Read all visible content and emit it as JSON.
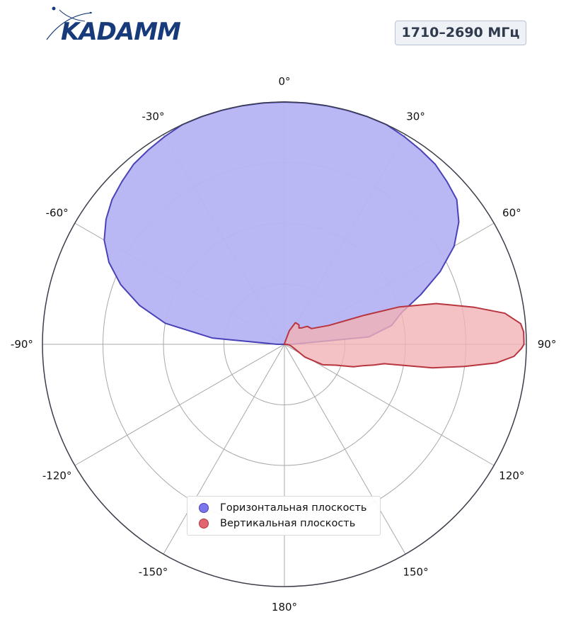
{
  "header": {
    "logo_text": "KADAMM",
    "badge": "1710–2690 МГц"
  },
  "colors": {
    "horizontal_fill": "#b5b4f4",
    "horizontal_line": "#4a42b8",
    "vertical_fill": "#f1b1b5",
    "vertical_line": "#b8353f",
    "grid": "#a8a8a8",
    "outer_ring": "#3b3e4a",
    "logo": "#173a7a"
  },
  "chart_data": {
    "type": "polar",
    "theta_zero": "top",
    "theta_direction": "clockwise",
    "r_range": [
      0,
      1
    ],
    "r_grid": [
      0.25,
      0.5,
      0.75,
      1.0
    ],
    "grid": true,
    "legend_position": "bottom-center",
    "angle_labels": [
      {
        "angle": 0,
        "label": "0°"
      },
      {
        "angle": 30,
        "label": "30°"
      },
      {
        "angle": 60,
        "label": "60°"
      },
      {
        "angle": 90,
        "label": "90°"
      },
      {
        "angle": 120,
        "label": "120°"
      },
      {
        "angle": 150,
        "label": "150°"
      },
      {
        "angle": 180,
        "label": "180°"
      },
      {
        "angle": -150,
        "label": "-150°"
      },
      {
        "angle": -120,
        "label": "-120°"
      },
      {
        "angle": -90,
        "label": "-90°"
      },
      {
        "angle": -60,
        "label": "-60°"
      },
      {
        "angle": -30,
        "label": "-30°"
      }
    ],
    "series": [
      {
        "name": "Горизонтальная плоскость",
        "theta": [
          -90,
          -85,
          -80,
          -75,
          -70,
          -65,
          -60,
          -55,
          -50,
          -45,
          -40,
          -35,
          -30,
          -25,
          -20,
          -15,
          -10,
          -5,
          0,
          5,
          10,
          15,
          20,
          25,
          30,
          35,
          40,
          45,
          50,
          55,
          60,
          65,
          70,
          75,
          80,
          85,
          90
        ],
        "r": [
          0.03,
          0.3,
          0.5,
          0.62,
          0.72,
          0.8,
          0.86,
          0.9,
          0.93,
          0.95,
          0.97,
          0.98,
          0.99,
          1.0,
          1.0,
          1.0,
          1.0,
          1.0,
          1.0,
          1.0,
          1.0,
          1.0,
          1.0,
          1.0,
          0.99,
          0.98,
          0.97,
          0.95,
          0.93,
          0.88,
          0.81,
          0.71,
          0.6,
          0.5,
          0.45,
          0.35,
          0.03
        ]
      },
      {
        "name": "Вертикальная плоскость",
        "theta": [
          10,
          20,
          27,
          33,
          37,
          42,
          47,
          52,
          60,
          67,
          70,
          72,
          75,
          79,
          82,
          85,
          87,
          89,
          90,
          91,
          93,
          95,
          97,
          99,
          100,
          101,
          103,
          105,
          108,
          112,
          118,
          122,
          115,
          106,
          98,
          92
        ],
        "r": [
          0.005,
          0.06,
          0.1,
          0.1,
          0.1,
          0.09,
          0.1,
          0.12,
          0.13,
          0.2,
          0.35,
          0.5,
          0.65,
          0.8,
          0.92,
          0.98,
          0.99,
          0.99,
          0.99,
          0.98,
          0.95,
          0.88,
          0.75,
          0.62,
          0.5,
          0.42,
          0.38,
          0.34,
          0.3,
          0.23,
          0.18,
          0.1,
          0.05,
          0.03,
          0.02,
          0.01
        ]
      }
    ]
  }
}
